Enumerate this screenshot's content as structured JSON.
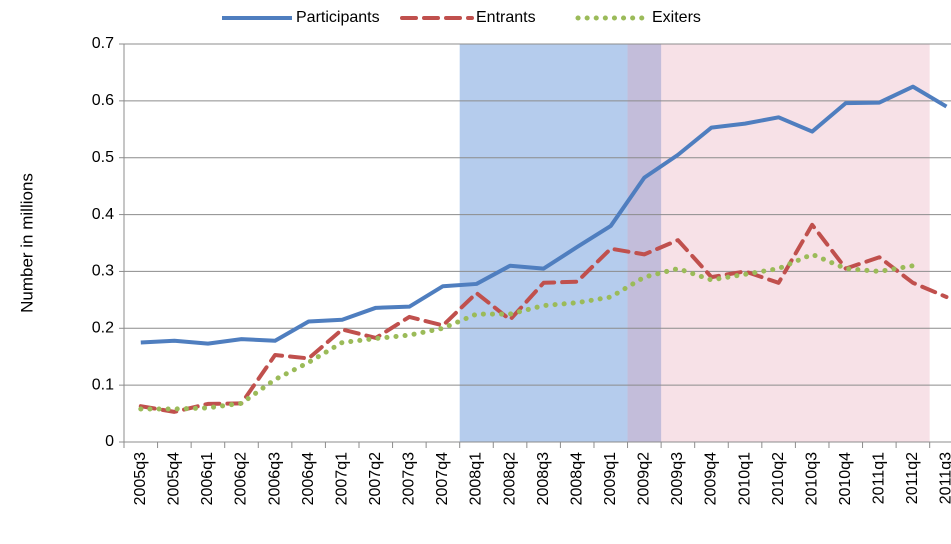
{
  "chart_data": {
    "type": "line",
    "y_label": "Number in millions",
    "categories": [
      "2005q3",
      "2005q4",
      "2006q1",
      "2006q2",
      "2006q3",
      "2006q4",
      "2007q1",
      "2007q2",
      "2007q3",
      "2007q4",
      "2008q1",
      "2008q2",
      "2008q3",
      "2008q4",
      "2009q1",
      "2009q2",
      "2009q3",
      "2009q4",
      "2010q1",
      "2010q2",
      "2010q3",
      "2010q4",
      "2011q1",
      "2011q2",
      "2011q3"
    ],
    "series": [
      {
        "name": "Participants",
        "color": "#4f7ebf",
        "dash": "solid",
        "values": [
          0.175,
          0.178,
          0.173,
          0.181,
          0.178,
          0.212,
          0.215,
          0.236,
          0.238,
          0.274,
          0.278,
          0.31,
          0.305,
          0.343,
          0.38,
          0.465,
          0.505,
          0.553,
          0.56,
          0.571,
          0.546,
          0.596,
          0.597,
          0.625,
          0.59
        ]
      },
      {
        "name": "Entrants",
        "color": "#c0504d",
        "dash": "dashed",
        "values": [
          0.063,
          0.053,
          0.067,
          0.068,
          0.153,
          0.147,
          0.198,
          0.183,
          0.22,
          0.205,
          0.262,
          0.215,
          0.28,
          0.282,
          0.34,
          0.33,
          0.355,
          0.29,
          0.3,
          0.28,
          0.382,
          0.305,
          0.325,
          0.28,
          0.255
        ]
      },
      {
        "name": "Exiters",
        "color": "#9bbb59",
        "dash": "dotted",
        "values": [
          0.058,
          0.058,
          0.06,
          0.068,
          0.11,
          0.14,
          0.175,
          0.182,
          0.188,
          0.2,
          0.225,
          0.225,
          0.24,
          0.245,
          0.255,
          0.29,
          0.305,
          0.285,
          0.295,
          0.305,
          0.33,
          0.305,
          0.3,
          0.31,
          null
        ]
      }
    ],
    "shaded_regions": [
      {
        "start": "2008q1",
        "end": "2009q2",
        "color": "#5b8fd6"
      },
      {
        "start": "2009q2",
        "end": "2011q2",
        "color": "#e39aae"
      }
    ],
    "ylim": [
      0,
      0.7
    ],
    "yticks": [
      0,
      0.1,
      0.2,
      0.3,
      0.4,
      0.5,
      0.6,
      0.7
    ],
    "grid": true,
    "legend": "top"
  }
}
